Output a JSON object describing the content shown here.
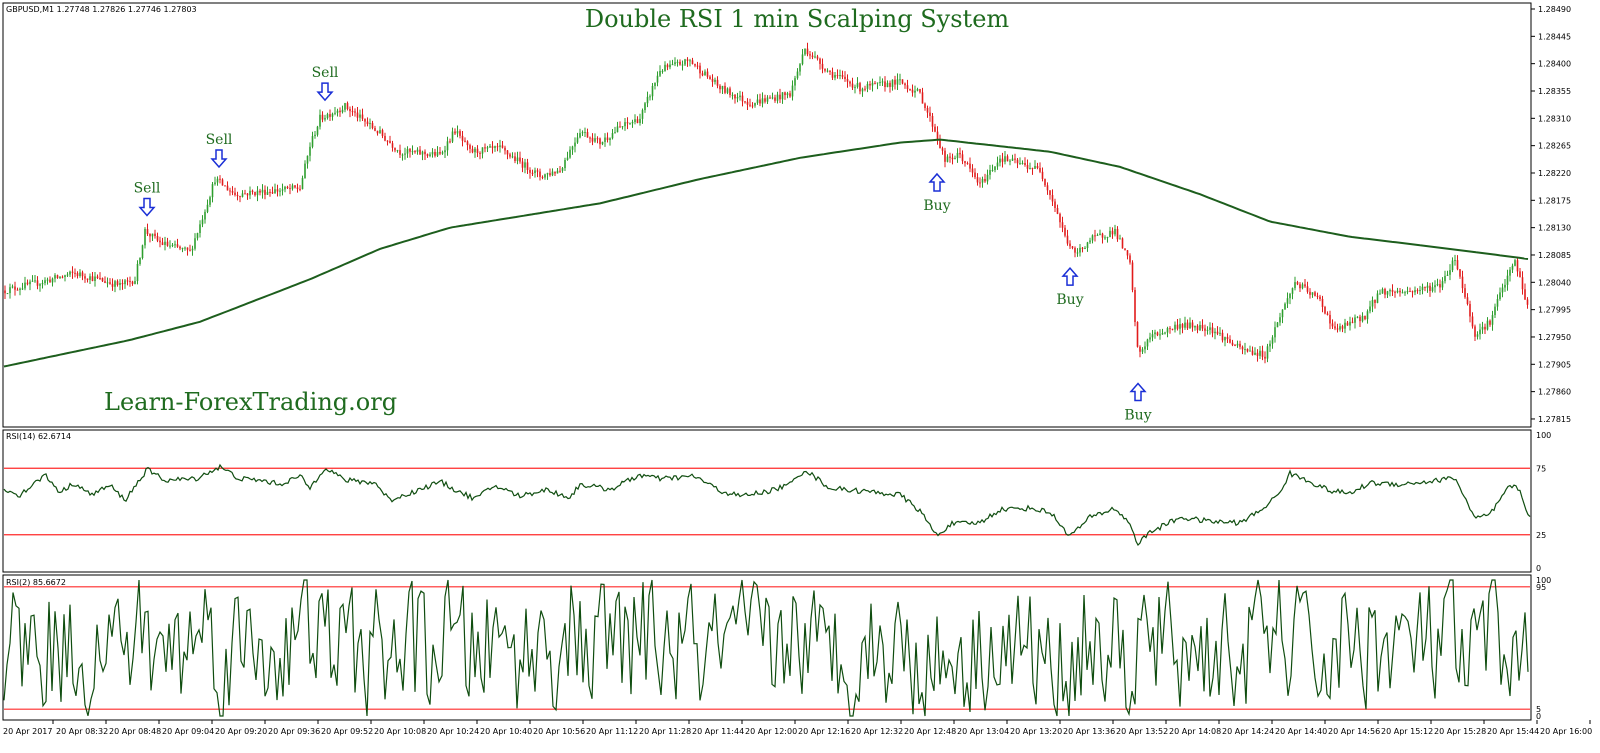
{
  "chart_data": {
    "type": "candlestick",
    "title": "Double RSI 1 min Scalping System",
    "watermark": "Learn-ForexTrading.org",
    "symbol_header": "GBPUSD,M1  1.27748 1.27826 1.27746 1.27803",
    "colors": {
      "up": "#2e9e2e",
      "down": "#e11b1b",
      "ma": "#1d5e1d",
      "rsi": "#0f4d0f",
      "level": "#ff2a2a",
      "arrow": "#1a2fd6",
      "signal_text": "#1f6b1f",
      "title": "#1f6b1f"
    },
    "price_axis": {
      "min": 1.2781,
      "max": 1.2849,
      "ticks": [
        "1.28490",
        "1.28445",
        "1.28400",
        "1.28355",
        "1.28310",
        "1.28265",
        "1.28220",
        "1.28175",
        "1.28130",
        "1.28085",
        "1.28040",
        "1.27995",
        "1.27950",
        "1.27905",
        "1.27860",
        "1.27815"
      ]
    },
    "time_labels": [
      "20 Apr 2017",
      "20 Apr 08:32",
      "20 Apr 08:48",
      "20 Apr 09:04",
      "20 Apr 09:20",
      "20 Apr 09:36",
      "20 Apr 09:52",
      "20 Apr 10:08",
      "20 Apr 10:24",
      "20 Apr 10:40",
      "20 Apr 10:56",
      "20 Apr 11:12",
      "20 Apr 11:28",
      "20 Apr 11:44",
      "20 Apr 12:00",
      "20 Apr 12:16",
      "20 Apr 12:32",
      "20 Apr 12:48",
      "20 Apr 13:04",
      "20 Apr 13:20",
      "20 Apr 13:36",
      "20 Apr 13:52",
      "20 Apr 14:08",
      "20 Apr 14:24",
      "20 Apr 14:40",
      "20 Apr 14:56",
      "20 Apr 15:12",
      "20 Apr 15:28",
      "20 Apr 15:44",
      "20 Apr 16:00"
    ],
    "price_path": [
      [
        0,
        1.28025
      ],
      [
        40,
        1.2804
      ],
      [
        75,
        1.28055
      ],
      [
        120,
        1.28035
      ],
      [
        135,
        1.28045
      ],
      [
        145,
        1.28125
      ],
      [
        160,
        1.28105
      ],
      [
        190,
        1.2809
      ],
      [
        200,
        1.28135
      ],
      [
        215,
        1.2821
      ],
      [
        235,
        1.28185
      ],
      [
        300,
        1.28195
      ],
      [
        310,
        1.28265
      ],
      [
        320,
        1.2831
      ],
      [
        345,
        1.2833
      ],
      [
        380,
        1.28285
      ],
      [
        400,
        1.28255
      ],
      [
        440,
        1.2825
      ],
      [
        455,
        1.2829
      ],
      [
        470,
        1.28255
      ],
      [
        500,
        1.2826
      ],
      [
        540,
        1.28215
      ],
      [
        560,
        1.28225
      ],
      [
        580,
        1.2829
      ],
      [
        600,
        1.2827
      ],
      [
        620,
        1.28295
      ],
      [
        640,
        1.2831
      ],
      [
        660,
        1.2839
      ],
      [
        690,
        1.28405
      ],
      [
        720,
        1.2836
      ],
      [
        750,
        1.28335
      ],
      [
        790,
        1.2835
      ],
      [
        805,
        1.28425
      ],
      [
        830,
        1.28385
      ],
      [
        860,
        1.2836
      ],
      [
        900,
        1.2837
      ],
      [
        920,
        1.2835
      ],
      [
        935,
        1.2829
      ],
      [
        945,
        1.2824
      ],
      [
        960,
        1.2825
      ],
      [
        980,
        1.282
      ],
      [
        1000,
        1.28245
      ],
      [
        1040,
        1.28225
      ],
      [
        1055,
        1.28165
      ],
      [
        1065,
        1.28115
      ],
      [
        1075,
        1.28085
      ],
      [
        1090,
        1.2811
      ],
      [
        1115,
        1.28125
      ],
      [
        1130,
        1.2807
      ],
      [
        1138,
        1.2792
      ],
      [
        1150,
        1.2795
      ],
      [
        1180,
        1.2797
      ],
      [
        1210,
        1.27965
      ],
      [
        1240,
        1.2793
      ],
      [
        1265,
        1.2792
      ],
      [
        1280,
        1.27985
      ],
      [
        1295,
        1.2804
      ],
      [
        1320,
        1.2801
      ],
      [
        1335,
        1.2796
      ],
      [
        1365,
        1.27985
      ],
      [
        1380,
        1.28025
      ],
      [
        1410,
        1.28025
      ],
      [
        1440,
        1.28035
      ],
      [
        1455,
        1.2808
      ],
      [
        1475,
        1.27955
      ],
      [
        1490,
        1.27975
      ],
      [
        1500,
        1.2802
      ],
      [
        1515,
        1.28075
      ],
      [
        1530,
        1.27985
      ]
    ],
    "ma_path": [
      [
        0,
        1.279
      ],
      [
        130,
        1.27945
      ],
      [
        200,
        1.27975
      ],
      [
        310,
        1.28045
      ],
      [
        380,
        1.28095
      ],
      [
        450,
        1.2813
      ],
      [
        600,
        1.2817
      ],
      [
        700,
        1.2821
      ],
      [
        800,
        1.28245
      ],
      [
        900,
        1.2827
      ],
      [
        940,
        1.28275
      ],
      [
        1050,
        1.28255
      ],
      [
        1120,
        1.2823
      ],
      [
        1200,
        1.28185
      ],
      [
        1270,
        1.2814
      ],
      [
        1350,
        1.28115
      ],
      [
        1450,
        1.28095
      ],
      [
        1530,
        1.28078
      ]
    ],
    "signals": [
      {
        "type": "sell",
        "label": "Sell",
        "x": 147,
        "price": 1.28145
      },
      {
        "type": "sell",
        "label": "Sell",
        "x": 219,
        "price": 1.28225
      },
      {
        "type": "sell",
        "label": "Sell",
        "x": 325,
        "price": 1.28335
      },
      {
        "type": "buy",
        "label": "Buy",
        "x": 937,
        "price": 1.28225
      },
      {
        "type": "buy",
        "label": "Buy",
        "x": 1070,
        "price": 1.2807
      },
      {
        "type": "buy",
        "label": "Buy",
        "x": 1138,
        "price": 1.2788
      }
    ],
    "rsi14": {
      "label": "RSI(14) 62.6714",
      "min": 0,
      "max": 100,
      "levels": [
        75,
        25
      ],
      "axis_ticks": [
        "100",
        "75",
        "25",
        "0"
      ],
      "path": [
        [
          0,
          60
        ],
        [
          20,
          55
        ],
        [
          45,
          70
        ],
        [
          60,
          57
        ],
        [
          75,
          64
        ],
        [
          90,
          55
        ],
        [
          110,
          62
        ],
        [
          125,
          51
        ],
        [
          147,
          74
        ],
        [
          165,
          66
        ],
        [
          195,
          67
        ],
        [
          220,
          76
        ],
        [
          240,
          67
        ],
        [
          260,
          66
        ],
        [
          280,
          63
        ],
        [
          300,
          69
        ],
        [
          310,
          60
        ],
        [
          325,
          76
        ],
        [
          345,
          66
        ],
        [
          375,
          64
        ],
        [
          390,
          51
        ],
        [
          420,
          59
        ],
        [
          440,
          65
        ],
        [
          460,
          57
        ],
        [
          475,
          52
        ],
        [
          495,
          62
        ],
        [
          520,
          54
        ],
        [
          545,
          59
        ],
        [
          570,
          53
        ],
        [
          580,
          63
        ],
        [
          610,
          59
        ],
        [
          640,
          70
        ],
        [
          660,
          67
        ],
        [
          695,
          69
        ],
        [
          720,
          58
        ],
        [
          740,
          54
        ],
        [
          770,
          58
        ],
        [
          790,
          63
        ],
        [
          805,
          74
        ],
        [
          830,
          60
        ],
        [
          860,
          58
        ],
        [
          900,
          55
        ],
        [
          920,
          43
        ],
        [
          937,
          24
        ],
        [
          950,
          33
        ],
        [
          980,
          34
        ],
        [
          1000,
          44
        ],
        [
          1030,
          45
        ],
        [
          1050,
          42
        ],
        [
          1070,
          24
        ],
        [
          1090,
          38
        ],
        [
          1115,
          45
        ],
        [
          1130,
          33
        ],
        [
          1138,
          18
        ],
        [
          1150,
          27
        ],
        [
          1180,
          38
        ],
        [
          1210,
          35
        ],
        [
          1240,
          34
        ],
        [
          1260,
          43
        ],
        [
          1278,
          55
        ],
        [
          1290,
          71
        ],
        [
          1310,
          65
        ],
        [
          1330,
          58
        ],
        [
          1350,
          56
        ],
        [
          1370,
          64
        ],
        [
          1400,
          63
        ],
        [
          1430,
          65
        ],
        [
          1455,
          68
        ],
        [
          1475,
          37
        ],
        [
          1490,
          40
        ],
        [
          1510,
          62
        ],
        [
          1518,
          60
        ],
        [
          1530,
          38
        ]
      ]
    },
    "rsi2": {
      "label": "RSI(2) 85.6672",
      "min": 0,
      "max": 100,
      "levels": [
        95,
        5
      ],
      "axis_ticks": [
        "100",
        "95",
        "5",
        "0"
      ]
    }
  }
}
